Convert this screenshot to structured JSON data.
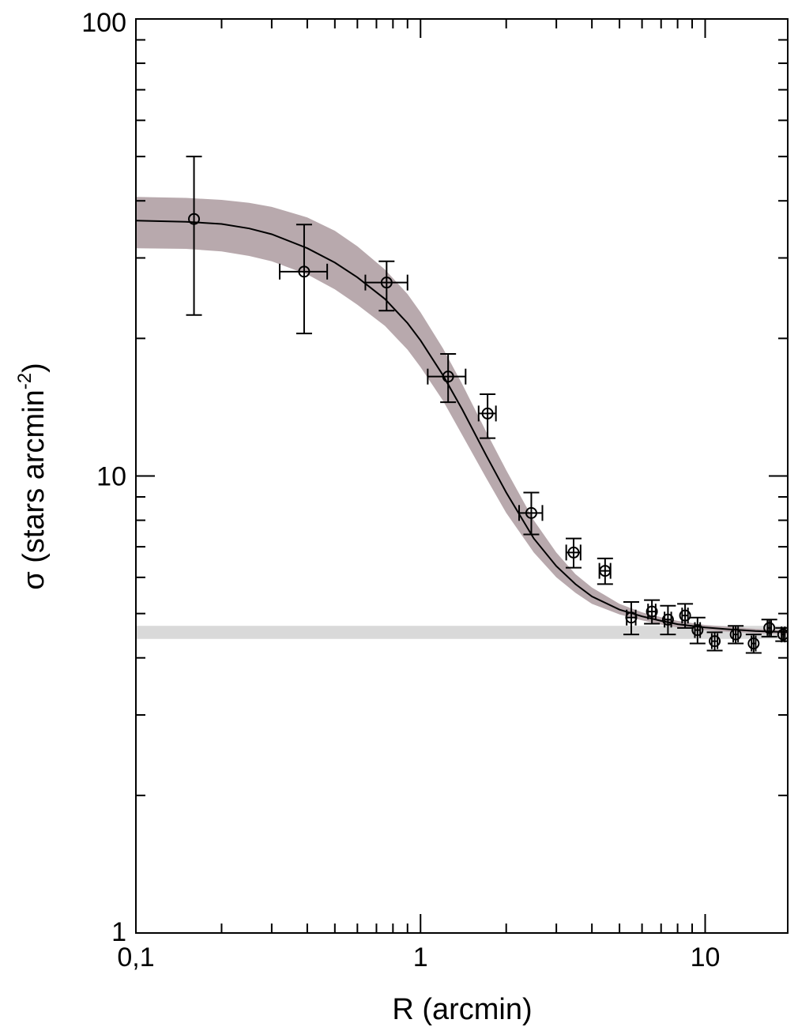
{
  "chart_data": {
    "type": "scatter",
    "title": "",
    "xlabel": "R (arcmin)",
    "ylabel_main": "σ (stars arcmin",
    "ylabel_sup": "-2",
    "ylabel_close": ")",
    "xscale": "log",
    "yscale": "log",
    "xlim": [
      0.1,
      19.5
    ],
    "ylim": [
      1,
      100
    ],
    "x_ticks": [
      {
        "value": 0.1,
        "label": "0,1"
      },
      {
        "value": 1,
        "label": "1"
      },
      {
        "value": 10,
        "label": "10"
      }
    ],
    "y_ticks": [
      {
        "value": 1,
        "label": "1"
      },
      {
        "value": 10,
        "label": "10"
      },
      {
        "value": 100,
        "label": "100"
      }
    ],
    "background_level": {
      "y": 4.55,
      "band": [
        4.4,
        4.7
      ],
      "color": "#d9d9d9"
    },
    "fit_band_color": "#b8a9ad",
    "points": [
      {
        "x": 0.16,
        "y": 36.5,
        "xerr": [
          0.06,
          0.06
        ],
        "yerr": [
          22.5,
          50.0
        ]
      },
      {
        "x": 0.39,
        "y": 28.0,
        "xerr": [
          0.32,
          0.47
        ],
        "yerr": [
          20.5,
          35.5
        ]
      },
      {
        "x": 0.76,
        "y": 26.5,
        "xerr": [
          0.64,
          0.9
        ],
        "yerr": [
          23.0,
          29.5
        ]
      },
      {
        "x": 1.25,
        "y": 16.5,
        "xerr": [
          1.06,
          1.44
        ],
        "yerr": [
          14.5,
          18.5
        ]
      },
      {
        "x": 1.72,
        "y": 13.7,
        "xerr": [
          1.6,
          1.84
        ],
        "yerr": [
          12.1,
          15.1
        ]
      },
      {
        "x": 2.45,
        "y": 8.3,
        "xerr": [
          2.22,
          2.68
        ],
        "yerr": [
          7.45,
          9.2
        ]
      },
      {
        "x": 3.45,
        "y": 6.8,
        "xerr": [
          3.25,
          3.65
        ],
        "yerr": [
          6.3,
          7.3
        ]
      },
      {
        "x": 4.45,
        "y": 6.2,
        "xerr": [
          4.25,
          4.65
        ],
        "yerr": [
          5.8,
          6.6
        ]
      },
      {
        "x": 5.5,
        "y": 4.9,
        "xerr": [
          5.3,
          5.7
        ],
        "yerr": [
          4.5,
          5.3
        ]
      },
      {
        "x": 6.5,
        "y": 5.05,
        "xerr": [
          6.3,
          6.7
        ],
        "yerr": [
          4.75,
          5.35
        ]
      },
      {
        "x": 7.4,
        "y": 4.85,
        "xerr": [
          7.2,
          7.6
        ],
        "yerr": [
          4.5,
          5.2
        ]
      },
      {
        "x": 8.5,
        "y": 4.95,
        "xerr": [
          8.3,
          8.7
        ],
        "yerr": [
          4.65,
          5.25
        ]
      },
      {
        "x": 9.4,
        "y": 4.6,
        "xerr": [
          9.2,
          9.6
        ],
        "yerr": [
          4.3,
          4.9
        ]
      },
      {
        "x": 10.8,
        "y": 4.35,
        "xerr": [
          10.55,
          11.05
        ],
        "yerr": [
          4.15,
          4.55
        ]
      },
      {
        "x": 12.8,
        "y": 4.5,
        "xerr": [
          12.55,
          13.05
        ],
        "yerr": [
          4.3,
          4.7
        ]
      },
      {
        "x": 14.8,
        "y": 4.3,
        "xerr": [
          14.55,
          15.05
        ],
        "yerr": [
          4.1,
          4.5
        ]
      },
      {
        "x": 16.8,
        "y": 4.65,
        "xerr": [
          16.55,
          17.05
        ],
        "yerr": [
          4.45,
          4.85
        ]
      },
      {
        "x": 18.8,
        "y": 4.5,
        "xerr": [
          18.55,
          19.05
        ],
        "yerr": [
          4.35,
          4.65
        ]
      }
    ],
    "fit_curve": {
      "x": [
        0.1,
        0.15,
        0.2,
        0.25,
        0.3,
        0.4,
        0.5,
        0.6,
        0.75,
        0.9,
        1.0,
        1.2,
        1.4,
        1.7,
        2.0,
        2.5,
        3.0,
        3.5,
        4.0,
        5.0,
        6.0,
        7.0,
        8.0,
        10.0,
        12.0,
        15.0,
        19.5
      ],
      "y": [
        36.2,
        36.0,
        35.6,
        34.8,
        33.8,
        31.5,
        29.3,
        27.2,
        24.4,
        21.6,
        19.8,
        16.6,
        14.0,
        11.1,
        9.2,
        7.3,
        6.35,
        5.8,
        5.45,
        5.1,
        4.93,
        4.82,
        4.74,
        4.66,
        4.62,
        4.58,
        4.55
      ],
      "band_lower": [
        31.5,
        31.4,
        31.0,
        30.3,
        29.5,
        27.6,
        25.6,
        23.7,
        21.3,
        18.9,
        17.3,
        14.6,
        12.3,
        9.9,
        8.3,
        6.8,
        6.0,
        5.55,
        5.25,
        4.98,
        4.83,
        4.73,
        4.66,
        4.6,
        4.56,
        4.53,
        4.5
      ],
      "band_upper": [
        40.8,
        40.6,
        40.2,
        39.6,
        38.8,
        36.8,
        34.4,
        31.8,
        28.3,
        25.0,
        22.8,
        19.0,
        15.9,
        12.5,
        10.3,
        8.0,
        6.8,
        6.1,
        5.7,
        5.25,
        5.03,
        4.91,
        4.82,
        4.72,
        4.68,
        4.63,
        4.6
      ]
    }
  }
}
